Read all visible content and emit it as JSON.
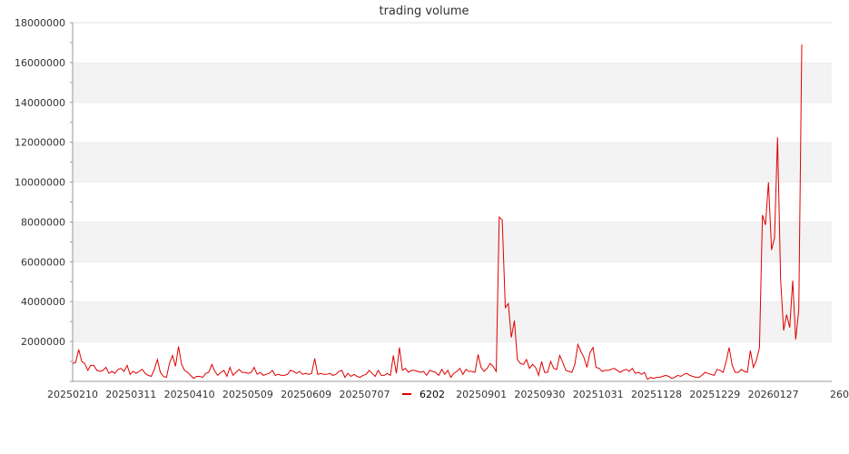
{
  "chart_data": {
    "type": "line",
    "title": "trading volume",
    "xlabel": "",
    "ylabel": "",
    "ylim": [
      0,
      18000000
    ],
    "yticks": [
      "2000000",
      "4000000",
      "6000000",
      "8000000",
      "10000000",
      "12000000",
      "14000000",
      "16000000",
      "18000000"
    ],
    "xticks": [
      "20250210",
      "20250311",
      "20250410",
      "20250509",
      "20250609",
      "20250707",
      "20250901",
      "20250930",
      "20251031",
      "20251128",
      "20251229",
      "20260127",
      "260"
    ],
    "grid": "alternating horizontal bands",
    "legend_position": "bottom",
    "series": [
      {
        "name": "6202",
        "color": "#e00000",
        "values": [
          900000,
          950000,
          1600000,
          1000000,
          900000,
          550000,
          800000,
          800000,
          550000,
          500000,
          550000,
          700000,
          400000,
          500000,
          400000,
          600000,
          650000,
          500000,
          800000,
          350000,
          500000,
          400000,
          500000,
          600000,
          400000,
          300000,
          250000,
          600000,
          1100000,
          450000,
          250000,
          200000,
          900000,
          1300000,
          750000,
          1750000,
          850000,
          550000,
          450000,
          300000,
          150000,
          250000,
          250000,
          200000,
          400000,
          450000,
          850000,
          500000,
          300000,
          450000,
          550000,
          250000,
          700000,
          300000,
          450000,
          600000,
          450000,
          450000,
          400000,
          450000,
          700000,
          350000,
          450000,
          300000,
          350000,
          400000,
          550000,
          300000,
          350000,
          300000,
          300000,
          350000,
          550000,
          500000,
          400000,
          500000,
          350000,
          400000,
          350000,
          400000,
          1150000,
          350000,
          400000,
          350000,
          350000,
          400000,
          300000,
          350000,
          500000,
          550000,
          200000,
          400000,
          250000,
          350000,
          250000,
          200000,
          300000,
          350000,
          550000,
          400000,
          250000,
          550000,
          300000,
          300000,
          400000,
          300000,
          1300000,
          400000,
          1700000,
          550000,
          650000,
          450000,
          550000,
          550000,
          500000,
          450000,
          500000,
          300000,
          550000,
          500000,
          450000,
          300000,
          600000,
          350000,
          550000,
          200000,
          400000,
          500000,
          650000,
          350000,
          600000,
          500000,
          500000,
          450000,
          1350000,
          700000,
          500000,
          650000,
          900000,
          750000,
          500000,
          8250000,
          8100000,
          3700000,
          3900000,
          2200000,
          3050000,
          1100000,
          900000,
          850000,
          1100000,
          650000,
          850000,
          700000,
          300000,
          1000000,
          450000,
          450000,
          1000000,
          650000,
          600000,
          1300000,
          950000,
          550000,
          500000,
          450000,
          850000,
          1850000,
          1500000,
          1200000,
          700000,
          1450000,
          1700000,
          700000,
          650000,
          500000,
          550000,
          550000,
          600000,
          650000,
          550000,
          450000,
          550000,
          600000,
          500000,
          650000,
          400000,
          450000,
          350000,
          450000,
          100000,
          200000,
          150000,
          200000,
          200000,
          250000,
          300000,
          250000,
          150000,
          200000,
          300000,
          250000,
          350000,
          400000,
          300000,
          250000,
          200000,
          200000,
          300000,
          450000,
          400000,
          350000,
          300000,
          600000,
          550000,
          450000,
          1000000,
          1700000,
          800000,
          450000,
          450000,
          600000,
          500000,
          450000,
          1550000,
          700000,
          1050000,
          1700000,
          8350000,
          7850000,
          10000000,
          6600000,
          7200000,
          12250000,
          5100000,
          2550000,
          3350000,
          2700000,
          5050000,
          2100000,
          3600000,
          16900000
        ]
      }
    ]
  }
}
